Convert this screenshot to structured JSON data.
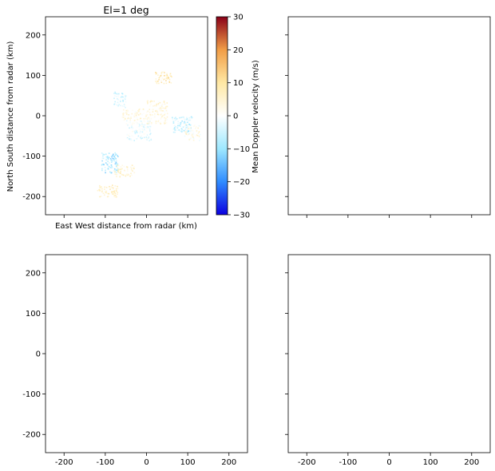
{
  "chart_data": [
    {
      "type": "scatter",
      "panel": "top-left",
      "title": "El=1 deg",
      "xlabel": "East West distance from radar (km)",
      "ylabel": "North South distance from radar (km)",
      "xlim": [
        -245,
        245
      ],
      "ylim": [
        -245,
        245
      ],
      "xticks": [
        -200,
        -100,
        0,
        100,
        200
      ],
      "xtick_labels_shown": false,
      "yticks": [
        -200,
        -100,
        0,
        100,
        200
      ],
      "ytick_labels": [
        "-200",
        "-100",
        "0",
        "100",
        "200"
      ],
      "field": "Mean Doppler velocity (m/s)",
      "colormap": [
        "#0b00e0",
        "#2f8cff",
        "#9ee8ff",
        "#ffffff",
        "#ffe8a4",
        "#f19d46",
        "#8a0018"
      ],
      "vmin": -30,
      "vmax": 30,
      "echo_regions": [
        {
          "x": [
            -80,
            -50
          ],
          "y": [
            20,
            60
          ],
          "velocity": -4
        },
        {
          "x": [
            -50,
            10
          ],
          "y": [
            -60,
            -10
          ],
          "velocity": -2
        },
        {
          "x": [
            0,
            50
          ],
          "y": [
            -20,
            40
          ],
          "velocity": 4
        },
        {
          "x": [
            20,
            60
          ],
          "y": [
            80,
            110
          ],
          "velocity": 8
        },
        {
          "x": [
            -110,
            -70
          ],
          "y": [
            -140,
            -90
          ],
          "velocity": -9
        },
        {
          "x": [
            -80,
            -30
          ],
          "y": [
            -150,
            -120
          ],
          "velocity": 5
        },
        {
          "x": [
            -120,
            -70
          ],
          "y": [
            -200,
            -170
          ],
          "velocity": 6
        },
        {
          "x": [
            60,
            110
          ],
          "y": [
            -40,
            0
          ],
          "velocity": -6
        },
        {
          "x": [
            -60,
            0
          ],
          "y": [
            -10,
            20
          ],
          "velocity": 3
        },
        {
          "x": [
            90,
            130
          ],
          "y": [
            -60,
            -20
          ],
          "velocity": 2
        }
      ]
    },
    {
      "type": "scatter",
      "panel": "top-right",
      "xlim": [
        -245,
        245
      ],
      "ylim": [
        -245,
        245
      ],
      "xticks": [
        -200,
        -100,
        0,
        100,
        200
      ],
      "yticks": [
        -200,
        -100,
        0,
        100,
        200
      ],
      "xtick_labels_shown": false,
      "ytick_labels_shown": false
    },
    {
      "type": "scatter",
      "panel": "bottom-left",
      "xlim": [
        -245,
        245
      ],
      "ylim": [
        -245,
        245
      ],
      "xticks": [
        -200,
        -100,
        0,
        100,
        200
      ],
      "xtick_labels": [
        "-200",
        "-100",
        "0",
        "100",
        "200"
      ],
      "yticks": [
        -200,
        -100,
        0,
        100,
        200
      ],
      "ytick_labels": [
        "-200",
        "-100",
        "0",
        "100",
        "200"
      ]
    },
    {
      "type": "scatter",
      "panel": "bottom-right",
      "xlim": [
        -245,
        245
      ],
      "ylim": [
        -245,
        245
      ],
      "xticks": [
        -200,
        -100,
        0,
        100,
        200
      ],
      "xtick_labels": [
        "-200",
        "-100",
        "0",
        "100",
        "200"
      ],
      "yticks": [
        -200,
        -100,
        0,
        100,
        200
      ],
      "ytick_labels_shown": false
    }
  ],
  "colorbar": {
    "label": "Mean Doppler velocity (m/s)",
    "ticks": [
      -30,
      -20,
      -10,
      0,
      10,
      20,
      30
    ],
    "tick_labels": [
      "−30",
      "−20",
      "−10",
      "0",
      "10",
      "20",
      "30"
    ]
  }
}
